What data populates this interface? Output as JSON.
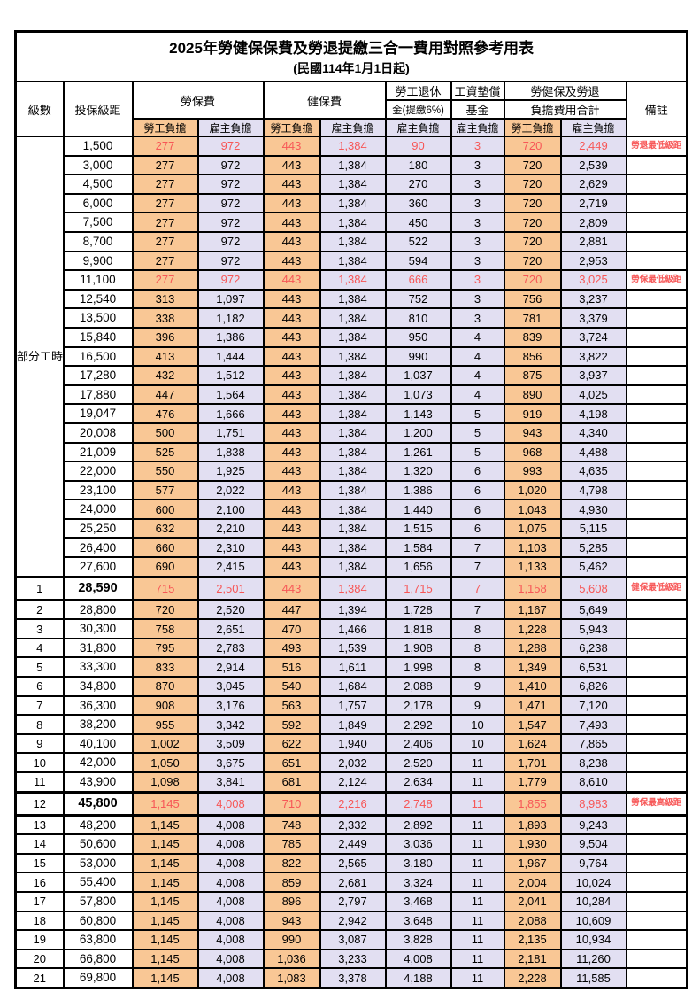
{
  "title": "2025年勞健保保費及勞退提繳三合一費用對照參考用表",
  "subtitle": "(民國114年1月1日起)",
  "header": {
    "level": "級數",
    "bracket": "投保級距",
    "labor_fee": "勞保費",
    "health_fee": "健保費",
    "pension_line1": "勞工退休",
    "pension_line2": "金(提繳6%)",
    "wage_fund_line1": "工資墊償",
    "wage_fund_line2": "基金",
    "total_line1": "勞健保及勞退",
    "total_line2": "負擔費用合計",
    "remark": "備註",
    "employee_share": "勞工負擔",
    "employer_share": "雇主負擔"
  },
  "part_time": {
    "label": "部分工時",
    "rowspan": 23
  },
  "colors": {
    "employee_bg": "#F9C795",
    "employer_bg": "#E2DFF2",
    "highlight_text": "#F75757",
    "border": "#000000"
  },
  "rows": [
    {
      "level": "",
      "bracket": "1,500",
      "values": [
        "277",
        "972",
        "443",
        "1,384",
        "90",
        "3",
        "720",
        "2,449"
      ],
      "remark": "勞退最低級距",
      "highlight": true,
      "bold": false
    },
    {
      "level": "",
      "bracket": "3,000",
      "values": [
        "277",
        "972",
        "443",
        "1,384",
        "180",
        "3",
        "720",
        "2,539"
      ],
      "remark": "",
      "highlight": false,
      "bold": false
    },
    {
      "level": "",
      "bracket": "4,500",
      "values": [
        "277",
        "972",
        "443",
        "1,384",
        "270",
        "3",
        "720",
        "2,629"
      ],
      "remark": "",
      "highlight": false,
      "bold": false
    },
    {
      "level": "",
      "bracket": "6,000",
      "values": [
        "277",
        "972",
        "443",
        "1,384",
        "360",
        "3",
        "720",
        "2,719"
      ],
      "remark": "",
      "highlight": false,
      "bold": false
    },
    {
      "level": "",
      "bracket": "7,500",
      "values": [
        "277",
        "972",
        "443",
        "1,384",
        "450",
        "3",
        "720",
        "2,809"
      ],
      "remark": "",
      "highlight": false,
      "bold": false
    },
    {
      "level": "",
      "bracket": "8,700",
      "values": [
        "277",
        "972",
        "443",
        "1,384",
        "522",
        "3",
        "720",
        "2,881"
      ],
      "remark": "",
      "highlight": false,
      "bold": false
    },
    {
      "level": "",
      "bracket": "9,900",
      "values": [
        "277",
        "972",
        "443",
        "1,384",
        "594",
        "3",
        "720",
        "2,953"
      ],
      "remark": "",
      "highlight": false,
      "bold": false
    },
    {
      "level": "",
      "bracket": "11,100",
      "values": [
        "277",
        "972",
        "443",
        "1,384",
        "666",
        "3",
        "720",
        "3,025"
      ],
      "remark": "勞保最低級距",
      "highlight": true,
      "bold": false
    },
    {
      "level": "",
      "bracket": "12,540",
      "values": [
        "313",
        "1,097",
        "443",
        "1,384",
        "752",
        "3",
        "756",
        "3,237"
      ],
      "remark": "",
      "highlight": false,
      "bold": false
    },
    {
      "level": "",
      "bracket": "13,500",
      "values": [
        "338",
        "1,182",
        "443",
        "1,384",
        "810",
        "3",
        "781",
        "3,379"
      ],
      "remark": "",
      "highlight": false,
      "bold": false
    },
    {
      "level": "",
      "bracket": "15,840",
      "values": [
        "396",
        "1,386",
        "443",
        "1,384",
        "950",
        "4",
        "839",
        "3,724"
      ],
      "remark": "",
      "highlight": false,
      "bold": false
    },
    {
      "level": "",
      "bracket": "16,500",
      "values": [
        "413",
        "1,444",
        "443",
        "1,384",
        "990",
        "4",
        "856",
        "3,822"
      ],
      "remark": "",
      "highlight": false,
      "bold": false
    },
    {
      "level": "",
      "bracket": "17,280",
      "values": [
        "432",
        "1,512",
        "443",
        "1,384",
        "1,037",
        "4",
        "875",
        "3,937"
      ],
      "remark": "",
      "highlight": false,
      "bold": false
    },
    {
      "level": "",
      "bracket": "17,880",
      "values": [
        "447",
        "1,564",
        "443",
        "1,384",
        "1,073",
        "4",
        "890",
        "4,025"
      ],
      "remark": "",
      "highlight": false,
      "bold": false
    },
    {
      "level": "",
      "bracket": "19,047",
      "values": [
        "476",
        "1,666",
        "443",
        "1,384",
        "1,143",
        "5",
        "919",
        "4,198"
      ],
      "remark": "",
      "highlight": false,
      "bold": false
    },
    {
      "level": "",
      "bracket": "20,008",
      "values": [
        "500",
        "1,751",
        "443",
        "1,384",
        "1,200",
        "5",
        "943",
        "4,340"
      ],
      "remark": "",
      "highlight": false,
      "bold": false
    },
    {
      "level": "",
      "bracket": "21,009",
      "values": [
        "525",
        "1,838",
        "443",
        "1,384",
        "1,261",
        "5",
        "968",
        "4,488"
      ],
      "remark": "",
      "highlight": false,
      "bold": false
    },
    {
      "level": "",
      "bracket": "22,000",
      "values": [
        "550",
        "1,925",
        "443",
        "1,384",
        "1,320",
        "6",
        "993",
        "4,635"
      ],
      "remark": "",
      "highlight": false,
      "bold": false
    },
    {
      "level": "",
      "bracket": "23,100",
      "values": [
        "577",
        "2,022",
        "443",
        "1,384",
        "1,386",
        "6",
        "1,020",
        "4,798"
      ],
      "remark": "",
      "highlight": false,
      "bold": false
    },
    {
      "level": "",
      "bracket": "24,000",
      "values": [
        "600",
        "2,100",
        "443",
        "1,384",
        "1,440",
        "6",
        "1,043",
        "4,930"
      ],
      "remark": "",
      "highlight": false,
      "bold": false
    },
    {
      "level": "",
      "bracket": "25,250",
      "values": [
        "632",
        "2,210",
        "443",
        "1,384",
        "1,515",
        "6",
        "1,075",
        "5,115"
      ],
      "remark": "",
      "highlight": false,
      "bold": false
    },
    {
      "level": "",
      "bracket": "26,400",
      "values": [
        "660",
        "2,310",
        "443",
        "1,384",
        "1,584",
        "7",
        "1,103",
        "5,285"
      ],
      "remark": "",
      "highlight": false,
      "bold": false
    },
    {
      "level": "",
      "bracket": "27,600",
      "values": [
        "690",
        "2,415",
        "443",
        "1,384",
        "1,656",
        "7",
        "1,133",
        "5,462"
      ],
      "remark": "",
      "highlight": false,
      "bold": false
    },
    {
      "level": "1",
      "bracket": "28,590",
      "values": [
        "715",
        "2,501",
        "443",
        "1,384",
        "1,715",
        "7",
        "1,158",
        "5,608"
      ],
      "remark": "健保最低級距",
      "highlight": true,
      "bold": true
    },
    {
      "level": "2",
      "bracket": "28,800",
      "values": [
        "720",
        "2,520",
        "447",
        "1,394",
        "1,728",
        "7",
        "1,167",
        "5,649"
      ],
      "remark": "",
      "highlight": false,
      "bold": false
    },
    {
      "level": "3",
      "bracket": "30,300",
      "values": [
        "758",
        "2,651",
        "470",
        "1,466",
        "1,818",
        "8",
        "1,228",
        "5,943"
      ],
      "remark": "",
      "highlight": false,
      "bold": false
    },
    {
      "level": "4",
      "bracket": "31,800",
      "values": [
        "795",
        "2,783",
        "493",
        "1,539",
        "1,908",
        "8",
        "1,288",
        "6,238"
      ],
      "remark": "",
      "highlight": false,
      "bold": false
    },
    {
      "level": "5",
      "bracket": "33,300",
      "values": [
        "833",
        "2,914",
        "516",
        "1,611",
        "1,998",
        "8",
        "1,349",
        "6,531"
      ],
      "remark": "",
      "highlight": false,
      "bold": false
    },
    {
      "level": "6",
      "bracket": "34,800",
      "values": [
        "870",
        "3,045",
        "540",
        "1,684",
        "2,088",
        "9",
        "1,410",
        "6,826"
      ],
      "remark": "",
      "highlight": false,
      "bold": false
    },
    {
      "level": "7",
      "bracket": "36,300",
      "values": [
        "908",
        "3,176",
        "563",
        "1,757",
        "2,178",
        "9",
        "1,471",
        "7,120"
      ],
      "remark": "",
      "highlight": false,
      "bold": false
    },
    {
      "level": "8",
      "bracket": "38,200",
      "values": [
        "955",
        "3,342",
        "592",
        "1,849",
        "2,292",
        "10",
        "1,547",
        "7,493"
      ],
      "remark": "",
      "highlight": false,
      "bold": false
    },
    {
      "level": "9",
      "bracket": "40,100",
      "values": [
        "1,002",
        "3,509",
        "622",
        "1,940",
        "2,406",
        "10",
        "1,624",
        "7,865"
      ],
      "remark": "",
      "highlight": false,
      "bold": false
    },
    {
      "level": "10",
      "bracket": "42,000",
      "values": [
        "1,050",
        "3,675",
        "651",
        "2,032",
        "2,520",
        "11",
        "1,701",
        "8,238"
      ],
      "remark": "",
      "highlight": false,
      "bold": false
    },
    {
      "level": "11",
      "bracket": "43,900",
      "values": [
        "1,098",
        "3,841",
        "681",
        "2,124",
        "2,634",
        "11",
        "1,779",
        "8,610"
      ],
      "remark": "",
      "highlight": false,
      "bold": false
    },
    {
      "level": "12",
      "bracket": "45,800",
      "values": [
        "1,145",
        "4,008",
        "710",
        "2,216",
        "2,748",
        "11",
        "1,855",
        "8,983"
      ],
      "remark": "勞保最高級距",
      "highlight": true,
      "bold": true
    },
    {
      "level": "13",
      "bracket": "48,200",
      "values": [
        "1,145",
        "4,008",
        "748",
        "2,332",
        "2,892",
        "11",
        "1,893",
        "9,243"
      ],
      "remark": "",
      "highlight": false,
      "bold": false
    },
    {
      "level": "14",
      "bracket": "50,600",
      "values": [
        "1,145",
        "4,008",
        "785",
        "2,449",
        "3,036",
        "11",
        "1,930",
        "9,504"
      ],
      "remark": "",
      "highlight": false,
      "bold": false
    },
    {
      "level": "15",
      "bracket": "53,000",
      "values": [
        "1,145",
        "4,008",
        "822",
        "2,565",
        "3,180",
        "11",
        "1,967",
        "9,764"
      ],
      "remark": "",
      "highlight": false,
      "bold": false
    },
    {
      "level": "16",
      "bracket": "55,400",
      "values": [
        "1,145",
        "4,008",
        "859",
        "2,681",
        "3,324",
        "11",
        "2,004",
        "10,024"
      ],
      "remark": "",
      "highlight": false,
      "bold": false
    },
    {
      "level": "17",
      "bracket": "57,800",
      "values": [
        "1,145",
        "4,008",
        "896",
        "2,797",
        "3,468",
        "11",
        "2,041",
        "10,284"
      ],
      "remark": "",
      "highlight": false,
      "bold": false
    },
    {
      "level": "18",
      "bracket": "60,800",
      "values": [
        "1,145",
        "4,008",
        "943",
        "2,942",
        "3,648",
        "11",
        "2,088",
        "10,609"
      ],
      "remark": "",
      "highlight": false,
      "bold": false
    },
    {
      "level": "19",
      "bracket": "63,800",
      "values": [
        "1,145",
        "4,008",
        "990",
        "3,087",
        "3,828",
        "11",
        "2,135",
        "10,934"
      ],
      "remark": "",
      "highlight": false,
      "bold": false
    },
    {
      "level": "20",
      "bracket": "66,800",
      "values": [
        "1,145",
        "4,008",
        "1,036",
        "3,233",
        "4,008",
        "11",
        "2,181",
        "11,260"
      ],
      "remark": "",
      "highlight": false,
      "bold": false
    },
    {
      "level": "21",
      "bracket": "69,800",
      "values": [
        "1,145",
        "4,008",
        "1,083",
        "3,378",
        "4,188",
        "11",
        "2,228",
        "11,585"
      ],
      "remark": "",
      "highlight": false,
      "bold": false
    }
  ]
}
